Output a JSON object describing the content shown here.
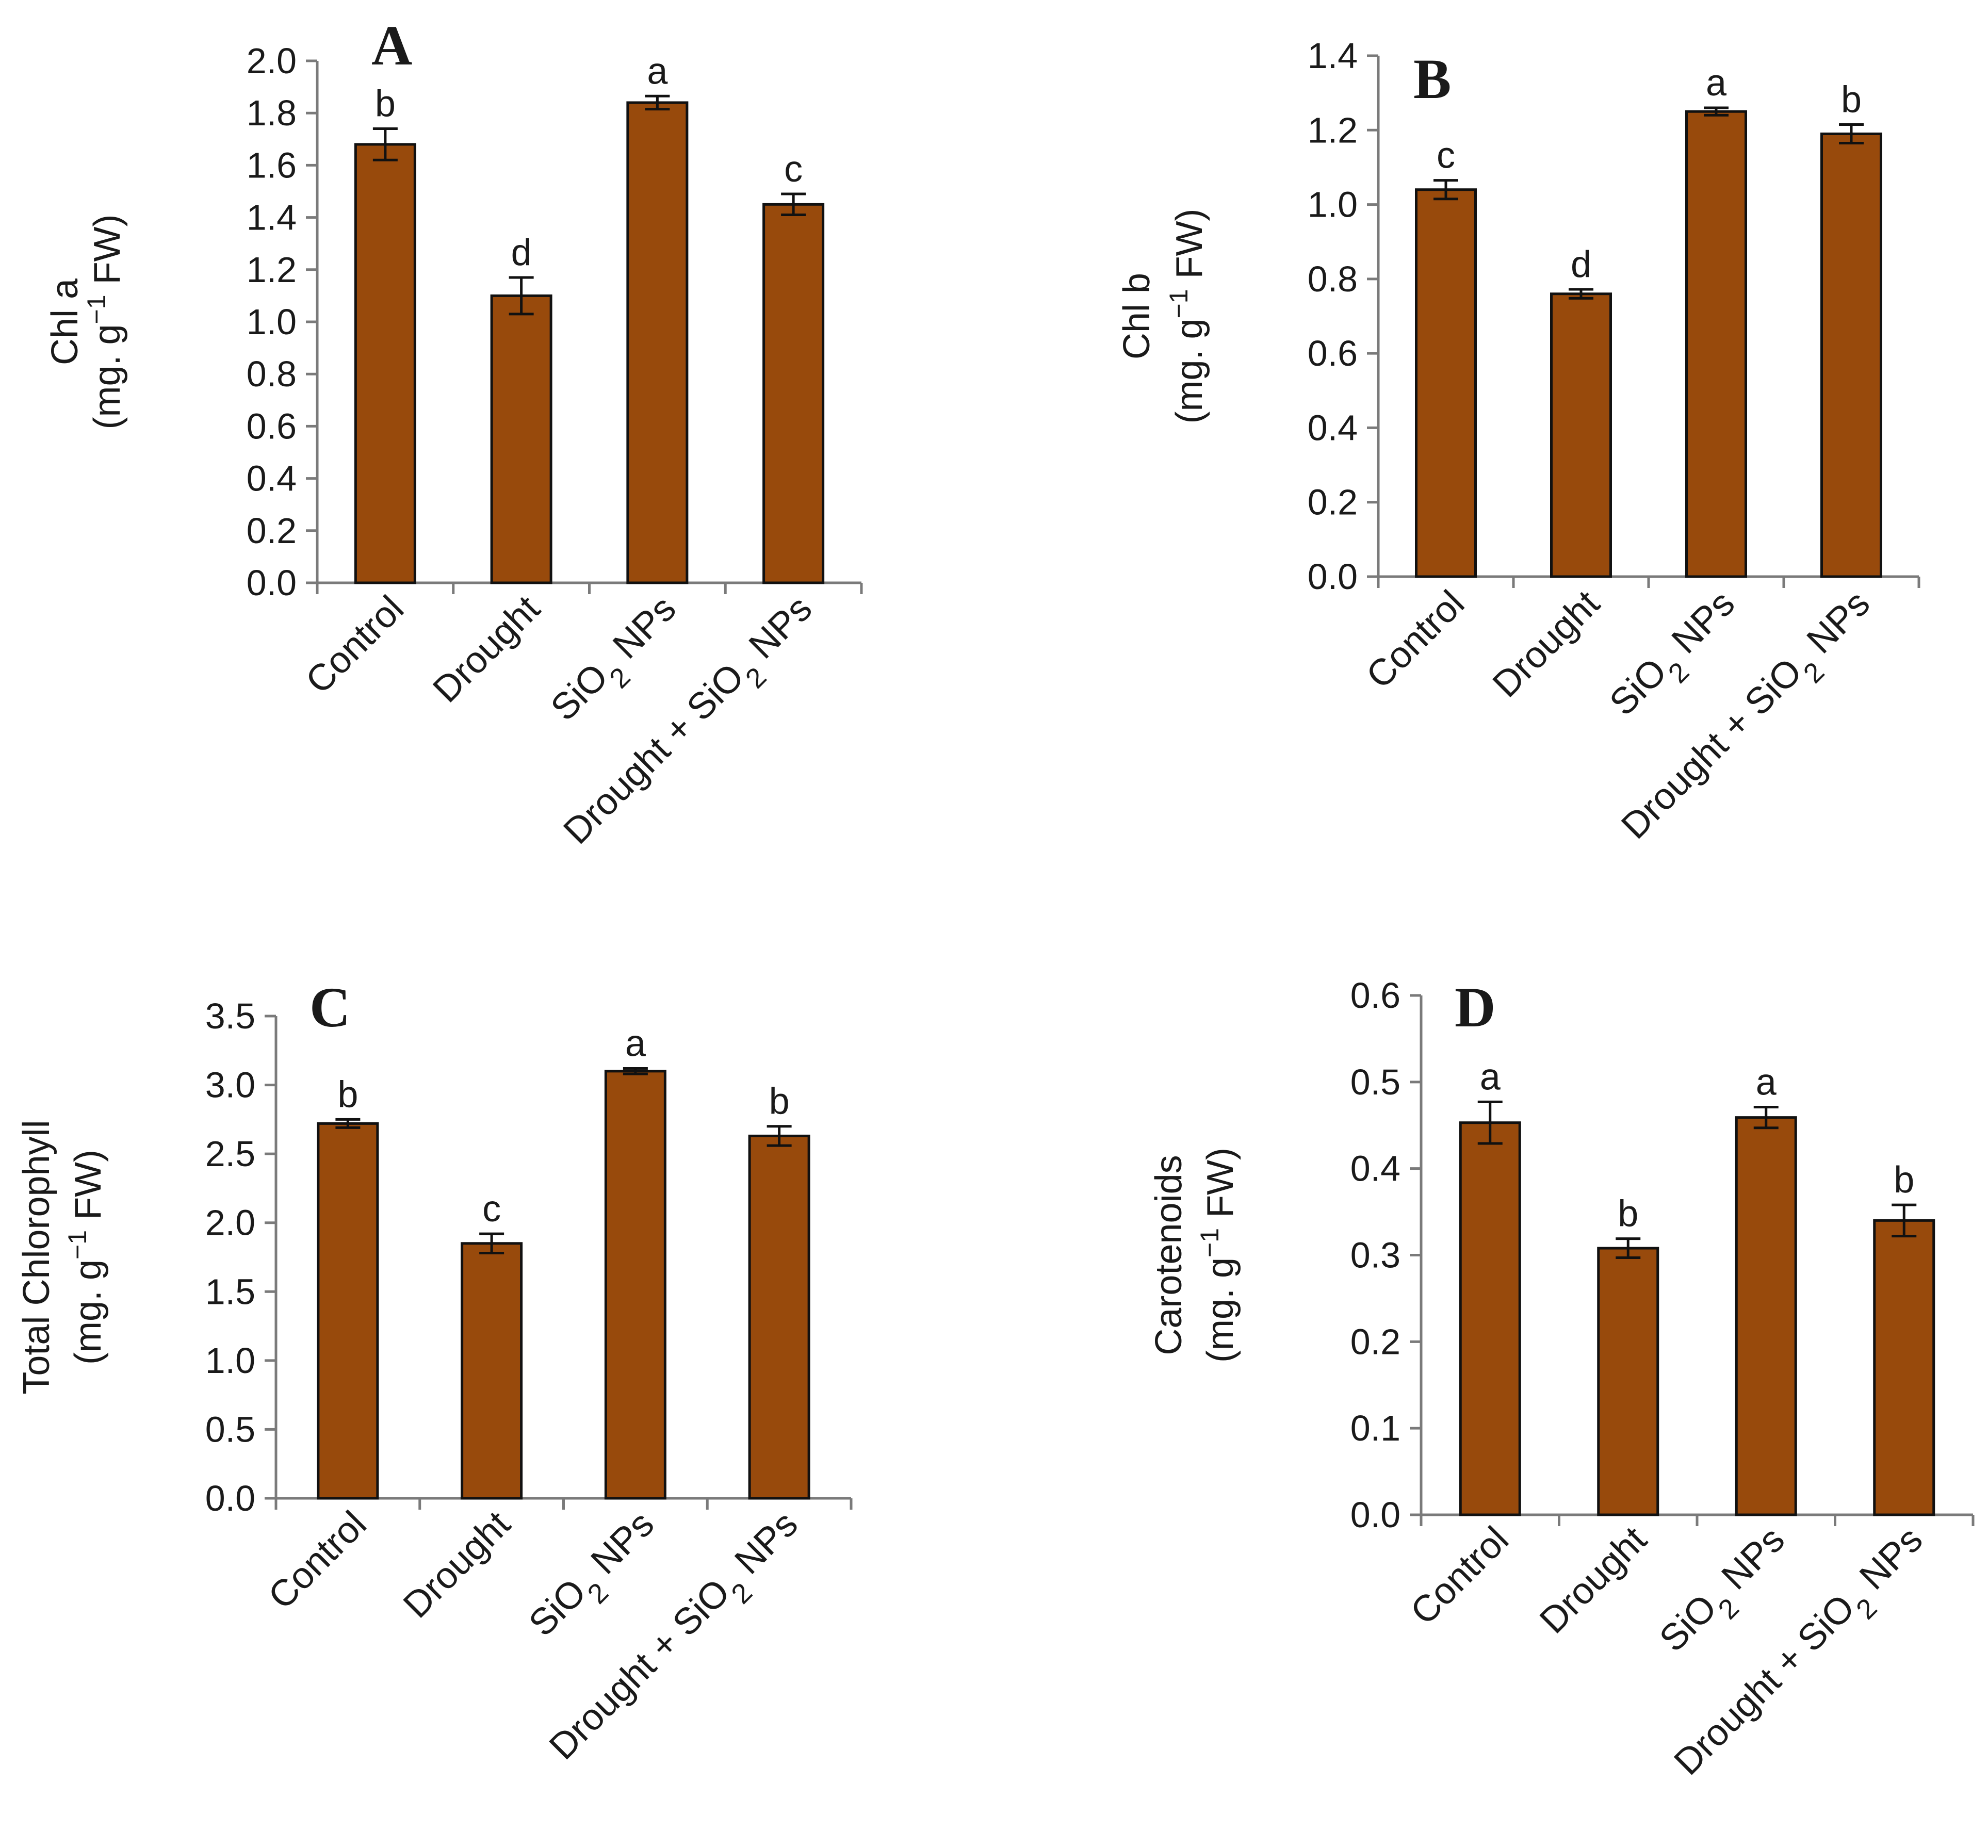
{
  "colors": {
    "bar_fill": "#984A0C",
    "bar_stroke": "#111111",
    "axis": "#7a7a7a",
    "text": "#1a1a1a"
  },
  "chart_data": [
    {
      "type": "bar",
      "panel_label": "A",
      "ylabel": "Chl a",
      "ylabel_unit": "(mg. g⁻¹ FW)",
      "categories": [
        "Control",
        "Drought",
        "SiO2 NPs",
        "Drought +  SiO2 NPs"
      ],
      "values": [
        1.68,
        1.1,
        1.84,
        1.45
      ],
      "errors": [
        0.06,
        0.07,
        0.025,
        0.04
      ],
      "significance": [
        "b",
        "d",
        "a",
        "c"
      ],
      "ylim": [
        0,
        2.0
      ],
      "yticks": [
        "0.0",
        "0.2",
        "0.4",
        "0.6",
        "0.8",
        "1.0",
        "1.2",
        "1.4",
        "1.6",
        "1.8",
        "2.0"
      ],
      "grid": false,
      "legend": "none"
    },
    {
      "type": "bar",
      "panel_label": "B",
      "ylabel": "Chl b",
      "ylabel_unit": "(mg. g⁻¹ FW)",
      "categories": [
        "Control",
        "Drought",
        "SiO2 NPs",
        "Drought +  SiO2 NPs"
      ],
      "values": [
        1.04,
        0.76,
        1.25,
        1.19
      ],
      "errors": [
        0.025,
        0.012,
        0.01,
        0.025
      ],
      "significance": [
        "c",
        "d",
        "a",
        "b"
      ],
      "ylim": [
        0,
        1.4
      ],
      "yticks": [
        "0.0",
        "0.2",
        "0.4",
        "0.6",
        "0.8",
        "1.0",
        "1.2",
        "1.4"
      ],
      "grid": false,
      "legend": "none"
    },
    {
      "type": "bar",
      "panel_label": "C",
      "ylabel": "Total Chlorophyll",
      "ylabel_unit": "(mg. g⁻¹ FW)",
      "categories": [
        "Control",
        "Drought",
        "SiO2 NPs",
        "Drought +  SiO2 NPs"
      ],
      "values": [
        2.72,
        1.85,
        3.1,
        2.63
      ],
      "errors": [
        0.03,
        0.07,
        0.02,
        0.07
      ],
      "significance": [
        "b",
        "c",
        "a",
        "b"
      ],
      "ylim": [
        0,
        3.5
      ],
      "yticks": [
        "0.0",
        "0.5",
        "1.0",
        "1.5",
        "2.0",
        "2.5",
        "3.0",
        "3.5"
      ],
      "grid": false,
      "legend": "none"
    },
    {
      "type": "bar",
      "panel_label": "D",
      "ylabel": "Carotenoids",
      "ylabel_unit": "(mg. g⁻¹ FW)",
      "categories": [
        "Control",
        "Drought",
        "SiO2 NPs",
        "Drought +  SiO2 NPs"
      ],
      "values": [
        0.453,
        0.308,
        0.459,
        0.34
      ],
      "errors": [
        0.024,
        0.011,
        0.012,
        0.018
      ],
      "significance": [
        "a",
        "b",
        "a",
        "b"
      ],
      "ylim": [
        0,
        0.6
      ],
      "yticks": [
        "0.0",
        "0.1",
        "0.2",
        "0.3",
        "0.4",
        "0.5",
        "0.6"
      ],
      "grid": false,
      "legend": "none"
    }
  ]
}
